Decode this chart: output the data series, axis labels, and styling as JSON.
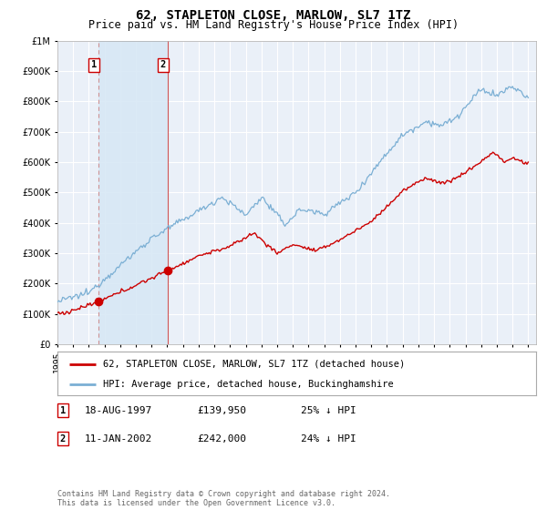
{
  "title": "62, STAPLETON CLOSE, MARLOW, SL7 1TZ",
  "subtitle": "Price paid vs. HM Land Registry's House Price Index (HPI)",
  "ytick_values": [
    0,
    100000,
    200000,
    300000,
    400000,
    500000,
    600000,
    700000,
    800000,
    900000,
    1000000
  ],
  "ylim": [
    0,
    1000000
  ],
  "xlim_start": 1995.0,
  "xlim_end": 2025.5,
  "sale1_date": 1997.63,
  "sale1_price": 139950,
  "sale1_label": "1",
  "sale2_date": 2002.03,
  "sale2_price": 242000,
  "sale2_label": "2",
  "sale_color": "#cc0000",
  "hpi_color": "#7bafd4",
  "vline1_color": "#cc8888",
  "vline2_color": "#cc4444",
  "shade_color": "#d8e8f5",
  "legend_sale_label": "62, STAPLETON CLOSE, MARLOW, SL7 1TZ (detached house)",
  "legend_hpi_label": "HPI: Average price, detached house, Buckinghamshire",
  "table_rows": [
    {
      "num": "1",
      "date": "18-AUG-1997",
      "price": "£139,950",
      "hpi": "25% ↓ HPI"
    },
    {
      "num": "2",
      "date": "11-JAN-2002",
      "price": "£242,000",
      "hpi": "24% ↓ HPI"
    }
  ],
  "footnote": "Contains HM Land Registry data © Crown copyright and database right 2024.\nThis data is licensed under the Open Government Licence v3.0.",
  "background_plot": "#eaf0f8",
  "background_fig": "#ffffff",
  "grid_color": "#ffffff",
  "title_fontsize": 10,
  "subtitle_fontsize": 8.5,
  "tick_fontsize": 7
}
